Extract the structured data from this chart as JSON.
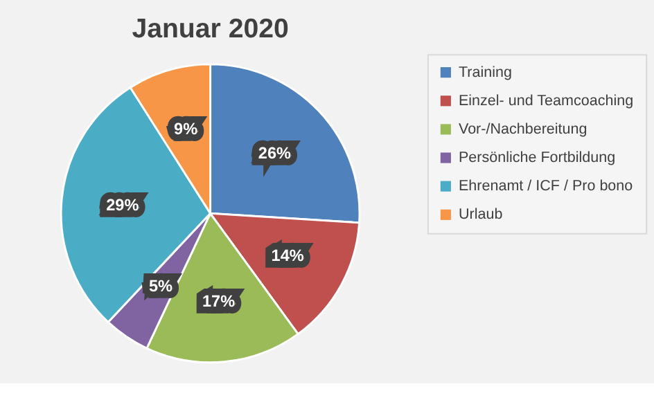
{
  "chart_data": {
    "type": "pie",
    "title": "Januar 2020",
    "categories": [
      "Training",
      "Einzel- und Teamcoaching",
      "Vor-/Nachbereitung",
      "Persönliche Fortbildung",
      "Ehrenamt / ICF / Pro bono",
      "Urlaub"
    ],
    "values": [
      26,
      14,
      17,
      5,
      29,
      9
    ],
    "colors": [
      "#4f81bd",
      "#c0504d",
      "#9bbb59",
      "#8064a2",
      "#4bacc6",
      "#f79646"
    ],
    "value_labels": [
      "26%",
      "14%",
      "17%",
      "5%",
      "29%",
      "9%"
    ],
    "legend": "right"
  }
}
